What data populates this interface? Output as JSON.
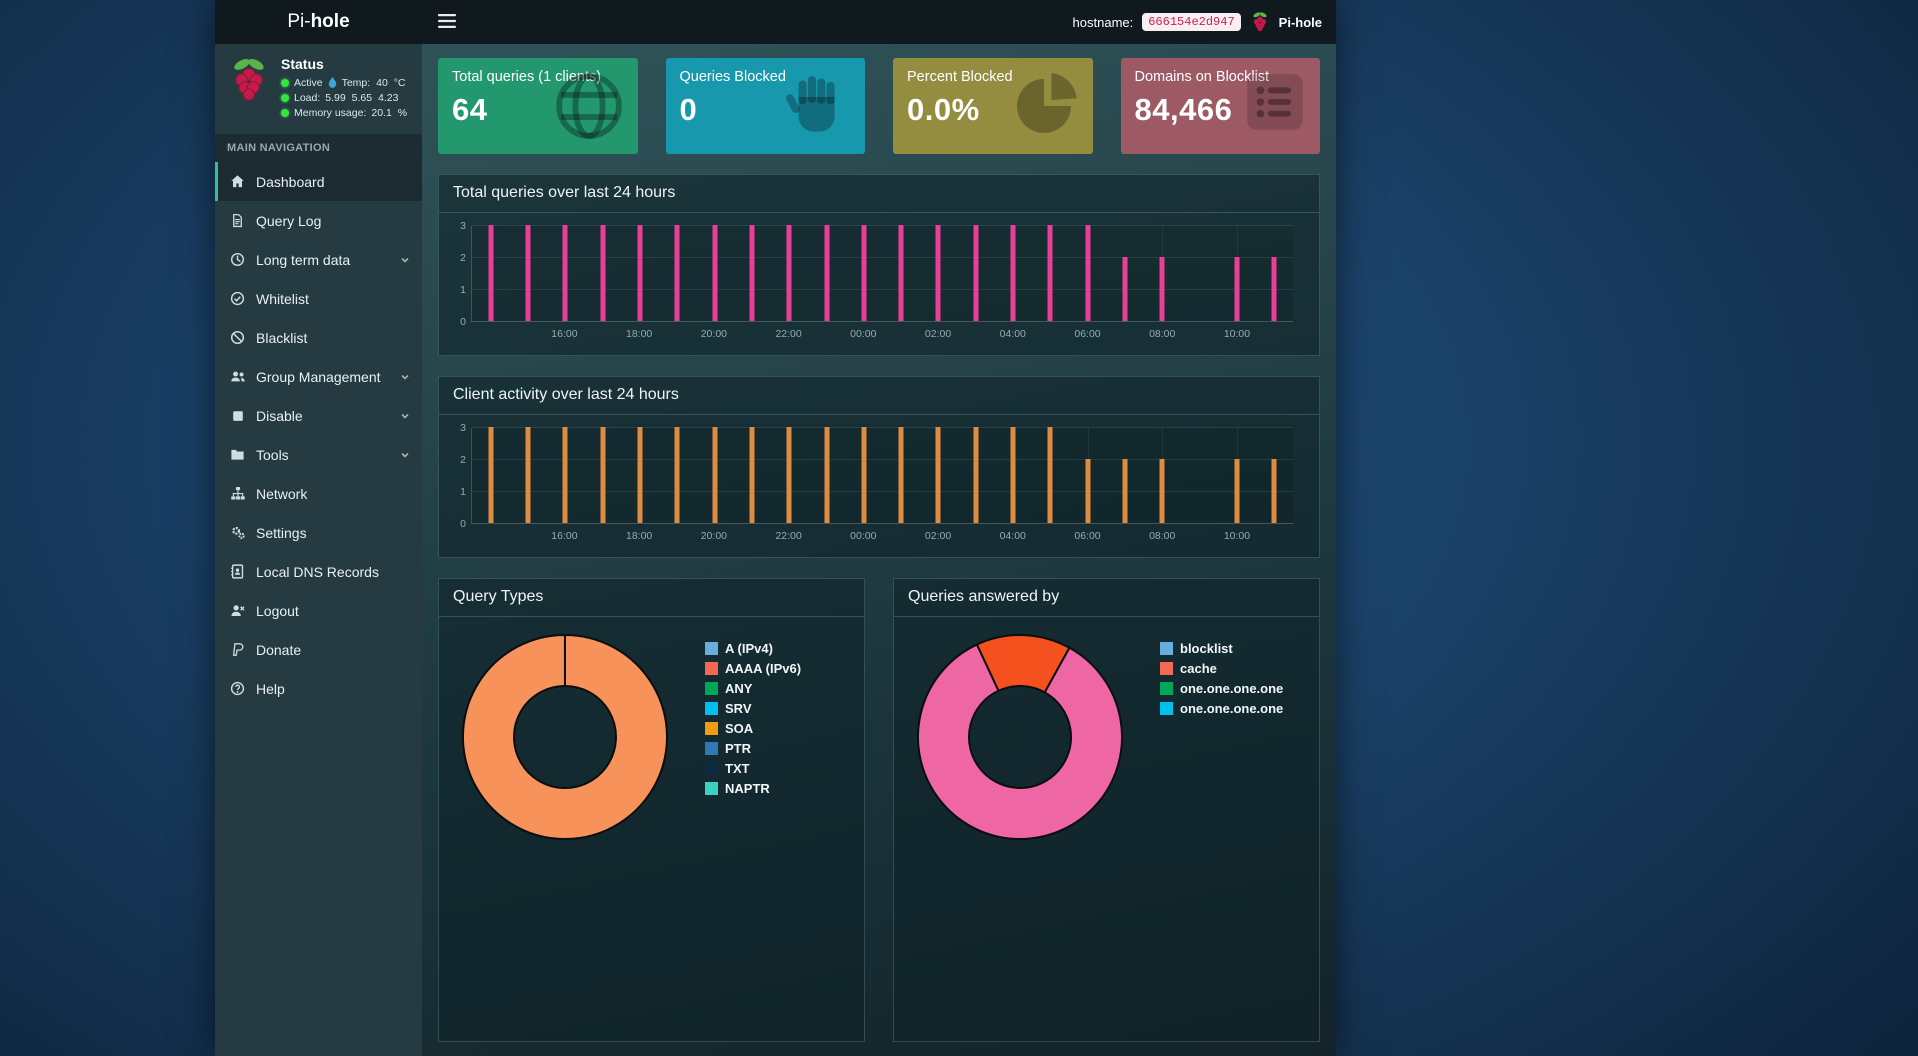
{
  "navbar": {
    "brand_pre": "Pi-",
    "brand_bold": "hole",
    "hostname_label": "hostname:",
    "hostname_value": "666154e2d947",
    "user_label": "Pi-hole"
  },
  "sidebar": {
    "status": {
      "title": "Status",
      "dot_color": "#35e53f",
      "lines": [
        {
          "text": "Active",
          "droplet": true,
          "suffix": "Temp: 40 °C"
        },
        {
          "text": "Load:",
          "suffix": "5.99 5.65 4.23"
        },
        {
          "text": "Memory usage:",
          "suffix": "20.1 %"
        }
      ]
    },
    "section_label": "MAIN NAVIGATION",
    "menu": [
      {
        "label": "Dashboard",
        "icon": "home-icon",
        "active": true
      },
      {
        "label": "Query Log",
        "icon": "file-icon"
      },
      {
        "label": "Long term data",
        "icon": "clock-icon",
        "chevron": true
      },
      {
        "label": "Whitelist",
        "icon": "check-circle-icon"
      },
      {
        "label": "Blacklist",
        "icon": "ban-icon"
      },
      {
        "label": "Group Management",
        "icon": "users-icon",
        "chevron": true
      },
      {
        "label": "Disable",
        "icon": "stop-icon",
        "chevron": true
      },
      {
        "label": "Tools",
        "icon": "folder-icon",
        "chevron": true
      },
      {
        "label": "Network",
        "icon": "network-icon"
      },
      {
        "label": "Settings",
        "icon": "gears-icon"
      },
      {
        "label": "Local DNS Records",
        "icon": "address-book-icon"
      },
      {
        "label": "Logout",
        "icon": "logout-icon"
      },
      {
        "label": "Donate",
        "icon": "donate-icon"
      },
      {
        "label": "Help",
        "icon": "help-icon"
      }
    ]
  },
  "cards": [
    {
      "title": "Total queries (1 clients)",
      "value": "64",
      "color": "#23976e",
      "icon": "globe-icon"
    },
    {
      "title": "Queries Blocked",
      "value": "0",
      "color": "#1898ad",
      "icon": "hand-icon"
    },
    {
      "title": "Percent Blocked",
      "value": "0.0%",
      "color": "#948c3f",
      "icon": "pie-icon"
    },
    {
      "title": "Domains on Blocklist",
      "value": "84,466",
      "color": "#9d5a64",
      "icon": "list-icon"
    }
  ],
  "chart_data": [
    {
      "type": "bar",
      "title": "Total queries over last 24 hours",
      "bar_color": "#ea3f96",
      "ylim": [
        0,
        3
      ],
      "yticks": [
        0,
        1,
        2,
        3
      ],
      "values": [
        3,
        3,
        3,
        3,
        3,
        3,
        3,
        3,
        3,
        3,
        3,
        3,
        3,
        3,
        3,
        3,
        3,
        2,
        2,
        0,
        2,
        2
      ],
      "xticks": [
        {
          "i": 2,
          "label": "16:00"
        },
        {
          "i": 4,
          "label": "18:00"
        },
        {
          "i": 6,
          "label": "20:00"
        },
        {
          "i": 8,
          "label": "22:00"
        },
        {
          "i": 10,
          "label": "00:00"
        },
        {
          "i": 12,
          "label": "02:00"
        },
        {
          "i": 14,
          "label": "04:00"
        },
        {
          "i": 16,
          "label": "06:00"
        },
        {
          "i": 18,
          "label": "08:00"
        },
        {
          "i": 20,
          "label": "10:00"
        }
      ]
    },
    {
      "type": "bar",
      "title": "Client activity over last 24 hours",
      "bar_color": "#dd8c41",
      "ylim": [
        0,
        3
      ],
      "yticks": [
        0,
        1,
        2,
        3
      ],
      "values": [
        3,
        3,
        3,
        3,
        3,
        3,
        3,
        3,
        3,
        3,
        3,
        3,
        3,
        3,
        3,
        3,
        2,
        2,
        2,
        0,
        2,
        2
      ],
      "xticks": [
        {
          "i": 2,
          "label": "16:00"
        },
        {
          "i": 4,
          "label": "18:00"
        },
        {
          "i": 6,
          "label": "20:00"
        },
        {
          "i": 8,
          "label": "22:00"
        },
        {
          "i": 10,
          "label": "00:00"
        },
        {
          "i": 12,
          "label": "02:00"
        },
        {
          "i": 14,
          "label": "04:00"
        },
        {
          "i": 16,
          "label": "06:00"
        },
        {
          "i": 18,
          "label": "08:00"
        },
        {
          "i": 20,
          "label": "10:00"
        }
      ]
    },
    {
      "type": "donut",
      "title": "Query Types",
      "cutout": 0.5,
      "start_angle": 0,
      "slices": [
        {
          "value": 100,
          "color": "#f7925a"
        }
      ],
      "legend": [
        {
          "label": "A (IPv4)",
          "color": "#67aede"
        },
        {
          "label": "AAAA (IPv6)",
          "color": "#f56954"
        },
        {
          "label": "ANY",
          "color": "#00a65a"
        },
        {
          "label": "SRV",
          "color": "#00c0ef"
        },
        {
          "label": "SOA",
          "color": "#f39c12"
        },
        {
          "label": "PTR",
          "color": "#2e78b5"
        },
        {
          "label": "TXT",
          "color": "#0c2b43"
        },
        {
          "label": "NAPTR",
          "color": "#3ad1c3"
        }
      ]
    },
    {
      "type": "donut",
      "title": "Queries answered by",
      "cutout": 0.5,
      "start_angle": -25,
      "slices": [
        {
          "value": 15,
          "color": "#f4511e"
        },
        {
          "value": 85,
          "color": "#ef66a4"
        }
      ],
      "legend": [
        {
          "label": "blocklist",
          "color": "#67aede"
        },
        {
          "label": "cache",
          "color": "#f56954"
        },
        {
          "label": "one.one.one.one",
          "color": "#00a65a"
        },
        {
          "label": "one.one.one.one",
          "color": "#00c0ef"
        }
      ]
    }
  ]
}
